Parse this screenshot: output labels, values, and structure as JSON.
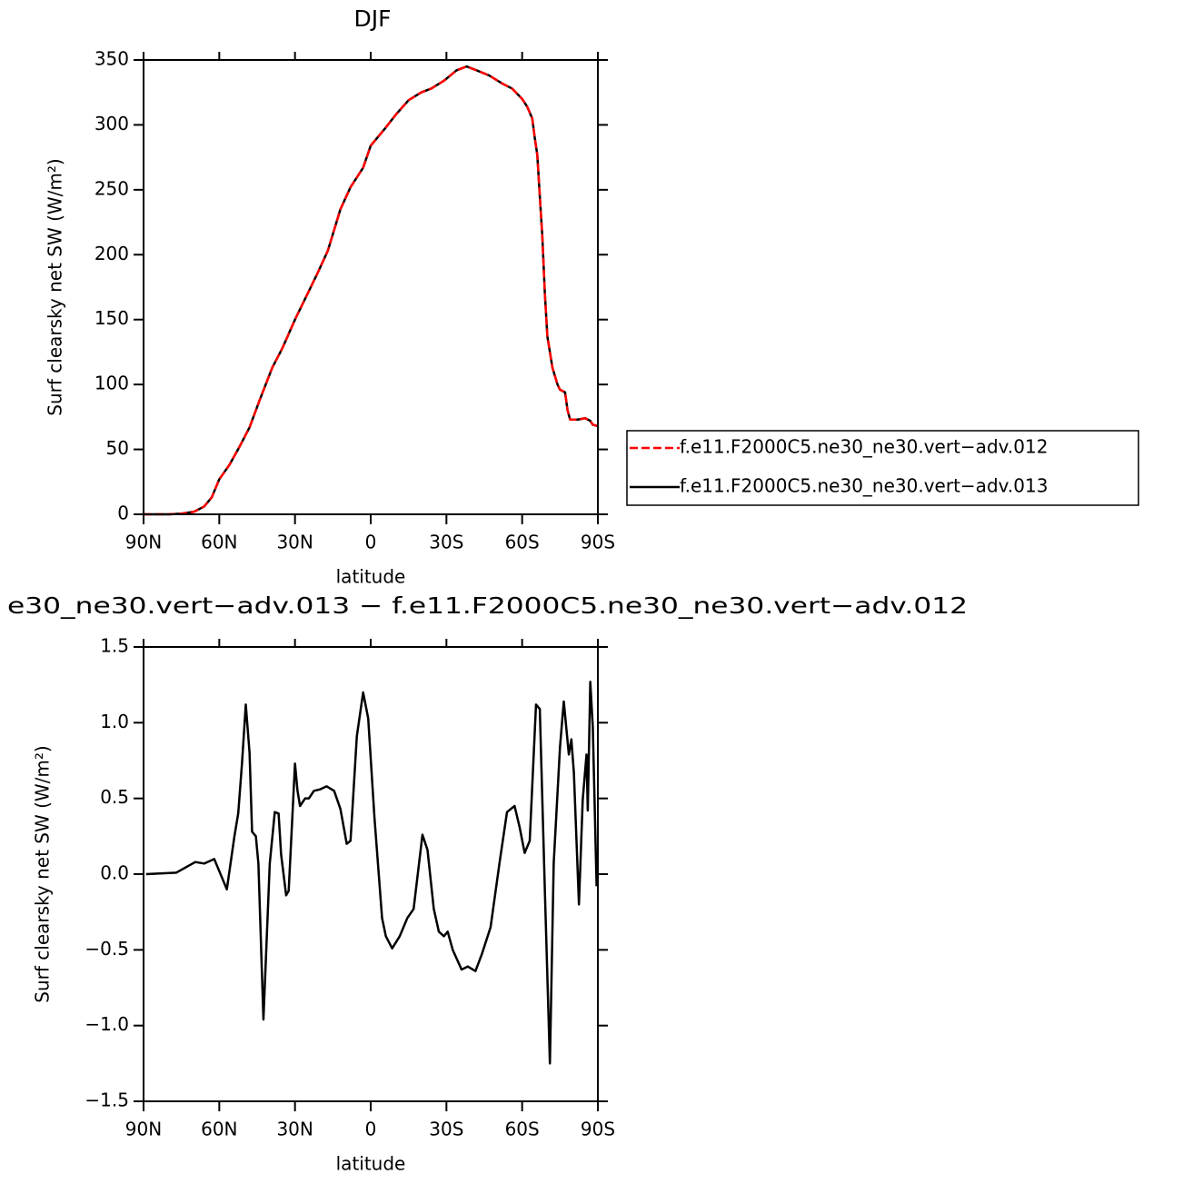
{
  "chart_data": [
    {
      "type": "line",
      "title": "DJF",
      "xlabel": "latitude",
      "ylabel": "Surf clearsky net SW (W/m²)",
      "x": [
        90,
        85,
        80,
        75,
        70,
        66,
        63,
        60,
        56,
        52,
        48,
        44,
        39,
        35,
        30,
        26,
        21,
        17,
        12,
        8,
        3,
        0,
        -6,
        -10,
        -15,
        -20,
        -24,
        -29,
        -34,
        -38,
        -42,
        -47,
        -52,
        -56,
        -60,
        -62,
        -64,
        -65,
        -66,
        -67,
        -68,
        -69,
        -70,
        -72,
        -74,
        -75,
        -76,
        -77,
        -78,
        -79,
        -82,
        -85,
        -87,
        -88,
        -90
      ],
      "series": [
        {
          "name": "f.e11.F2000C5.ne30_ne30.vert−adv.012",
          "color": "#ff0000",
          "dashed": true,
          "values": [
            0,
            0,
            0,
            0.5,
            2,
            6,
            13,
            27,
            38,
            52,
            67,
            88,
            113,
            128,
            150,
            166,
            186,
            203,
            235,
            252,
            267,
            284,
            298,
            308,
            319,
            325,
            328,
            334,
            342,
            345,
            342,
            338,
            332,
            328,
            320,
            314,
            305,
            290,
            277,
            245,
            214,
            170,
            137,
            113,
            100,
            96,
            95,
            94,
            80,
            73,
            73,
            74,
            72,
            69,
            68
          ]
        },
        {
          "name": "f.e11.F2000C5.ne30_ne30.vert−adv.013",
          "color": "#000000",
          "dashed": false,
          "values": [
            0,
            0,
            0,
            0.5,
            2,
            6,
            13,
            27,
            38,
            52,
            67,
            88,
            113,
            128,
            150,
            166,
            186,
            203,
            235,
            252,
            267,
            284,
            298,
            308,
            319,
            325,
            328,
            334,
            342,
            345,
            342,
            338,
            332,
            328,
            320,
            314,
            305,
            290,
            277,
            245,
            214,
            170,
            137,
            113,
            100,
            96,
            95,
            94,
            80,
            73,
            73,
            74,
            72,
            69,
            68
          ]
        }
      ],
      "xlim": [
        90,
        -90
      ],
      "xticks": [
        {
          "value": 90,
          "label": "90N"
        },
        {
          "value": 60,
          "label": "60N"
        },
        {
          "value": 30,
          "label": "30N"
        },
        0,
        {
          "value": -30,
          "label": "30S"
        },
        {
          "value": -60,
          "label": "60S"
        },
        {
          "value": -90,
          "label": "90S"
        }
      ],
      "ylim": [
        0,
        350
      ],
      "yticks": [
        0,
        50,
        100,
        150,
        200,
        250,
        300,
        350
      ],
      "legend": "right"
    },
    {
      "type": "line",
      "title": "e30_ne30.vert−adv.013 − f.e11.F2000C5.ne30_ne30.vert−adv.012",
      "xlabel": "latitude",
      "ylabel": "Surf clearsky net SW (W/m²)",
      "x": [
        89,
        77,
        69.5,
        66,
        62,
        60,
        57,
        54,
        52.5,
        51,
        49.5,
        48,
        47,
        45.5,
        44.5,
        42.5,
        40,
        38,
        36.5,
        35.5,
        33.5,
        32.5,
        30,
        29,
        28,
        26,
        24.5,
        22.5,
        20,
        17.5,
        14.5,
        12,
        9.5,
        8,
        5.5,
        3,
        1,
        -1.5,
        -4.5,
        -6,
        -8.5,
        -11.5,
        -14.5,
        -17,
        -20.5,
        -22.5,
        -25,
        -27,
        -29,
        -30.5,
        -32.5,
        -36,
        -38.5,
        -41.5,
        -44,
        -47.5,
        -51,
        -54,
        -57,
        -59,
        -61,
        -63,
        -65.5,
        -67,
        -69,
        -71,
        -72.5,
        -75,
        -76.5,
        -78.5,
        -79.5,
        -80.5,
        -82.5,
        -84,
        -85.5,
        -86,
        -87,
        -88,
        -89.5
      ],
      "values": [
        0,
        0.01,
        0.08,
        0.07,
        0.1,
        0.02,
        -0.1,
        0.25,
        0.4,
        0.73,
        1.12,
        0.8,
        0.28,
        0.25,
        0.07,
        -0.96,
        0.07,
        0.41,
        0.4,
        0.13,
        -0.14,
        -0.11,
        0.73,
        0.55,
        0.45,
        0.5,
        0.5,
        0.55,
        0.56,
        0.58,
        0.55,
        0.43,
        0.2,
        0.22,
        0.91,
        1.2,
        1.03,
        0.37,
        -0.29,
        -0.41,
        -0.49,
        -0.41,
        -0.29,
        -0.23,
        0.26,
        0.16,
        -0.23,
        -0.38,
        -0.41,
        -0.38,
        -0.5,
        -0.63,
        -0.61,
        -0.64,
        -0.53,
        -0.35,
        0.07,
        0.41,
        0.45,
        0.31,
        0.14,
        0.22,
        1.12,
        1.09,
        -0.11,
        -1.25,
        0.07,
        0.84,
        1.14,
        0.79,
        0.89,
        0.67,
        -0.2,
        0.49,
        0.79,
        0.42,
        1.27,
        0.97,
        -0.08
      ],
      "color": "#000000",
      "xlim": [
        90,
        -90
      ],
      "xticks": [
        {
          "value": 90,
          "label": "90N"
        },
        {
          "value": 60,
          "label": "60N"
        },
        {
          "value": 30,
          "label": "30N"
        },
        0,
        {
          "value": -30,
          "label": "30S"
        },
        {
          "value": -60,
          "label": "60S"
        },
        {
          "value": -90,
          "label": "90S"
        }
      ],
      "ylim": [
        -1.5,
        1.5
      ],
      "yticks": [
        {
          "value": -1.5,
          "label": "−1.5"
        },
        {
          "value": -1,
          "label": "−1.0"
        },
        {
          "value": -0.5,
          "label": "−0.5"
        },
        {
          "value": 0,
          "label": "0.0"
        },
        0.5,
        {
          "value": 1,
          "label": "1.0"
        },
        1.5
      ]
    }
  ]
}
